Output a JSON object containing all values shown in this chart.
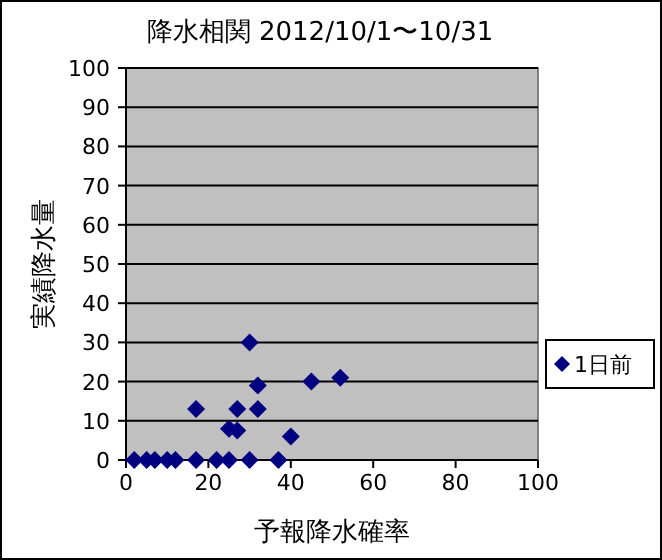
{
  "chart_data": {
    "type": "scatter",
    "title": "降水相関 2012/10/1〜10/31",
    "xlabel": "予報降水確率",
    "ylabel": "実績降水量",
    "xlim": [
      0,
      100
    ],
    "ylim": [
      0,
      100
    ],
    "xticks": [
      0,
      20,
      40,
      60,
      80,
      100
    ],
    "yticks": [
      0,
      10,
      20,
      30,
      40,
      50,
      60,
      70,
      80,
      90,
      100
    ],
    "grid": "y",
    "legend": "right",
    "marker": "diamond",
    "series": [
      {
        "name": "1日前",
        "color": "#000080",
        "x": [
          2,
          5,
          7,
          10,
          12,
          17,
          22,
          25,
          30,
          37,
          17,
          25,
          27,
          27,
          30,
          32,
          32,
          40,
          45,
          52
        ],
        "values": [
          0,
          0,
          0,
          0,
          0,
          0,
          0,
          0,
          0,
          0,
          13,
          8,
          7.5,
          13,
          30,
          19,
          13,
          6,
          20,
          21
        ]
      }
    ]
  }
}
